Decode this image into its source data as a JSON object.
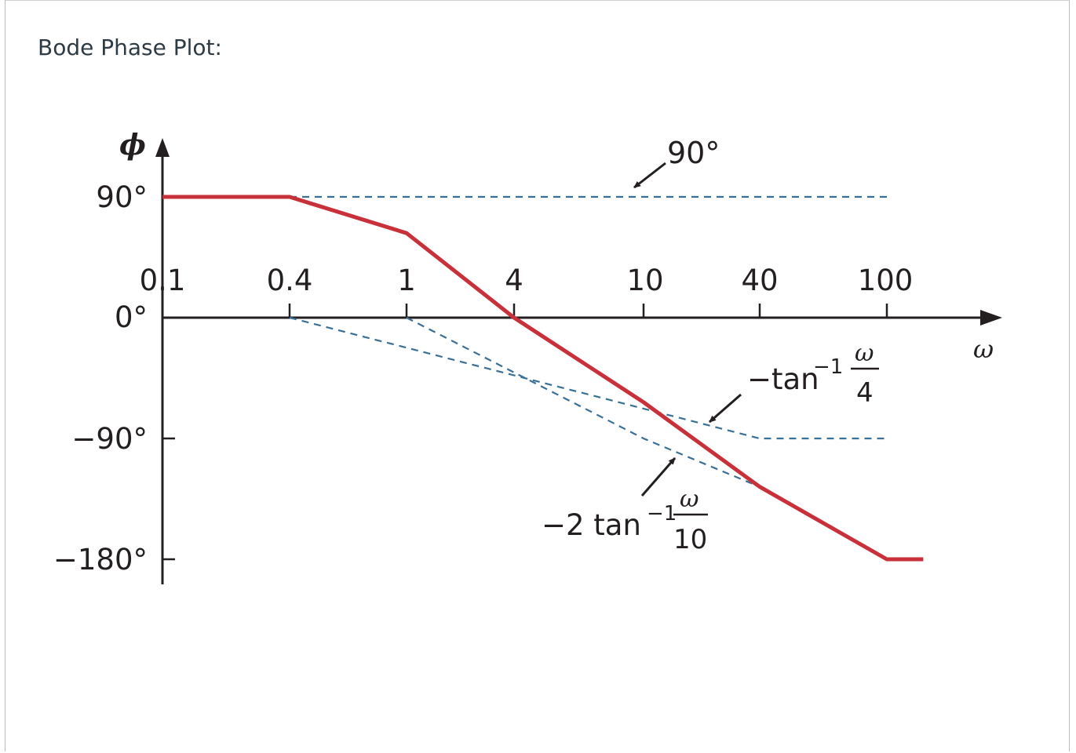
{
  "header": {
    "title": "Bode Phase Plot:"
  },
  "colors": {
    "plot_line": "#c8303a",
    "asymptote": "#3a6f97",
    "axis": "#231f20"
  },
  "chart_data": {
    "type": "line",
    "title": "",
    "xlabel": "ω",
    "ylabel": "ϕ",
    "x_scale": "log",
    "xlim": [
      0.1,
      100
    ],
    "ylim": [
      -180,
      90
    ],
    "x_ticks": [
      {
        "value": 0.1,
        "label": "0.1"
      },
      {
        "value": 0.4,
        "label": "0.4"
      },
      {
        "value": 1,
        "label": "1"
      },
      {
        "value": 4,
        "label": "4"
      },
      {
        "value": 10,
        "label": "10"
      },
      {
        "value": 40,
        "label": "40"
      },
      {
        "value": 100,
        "label": "100"
      }
    ],
    "y_ticks": [
      {
        "value": 90,
        "label": "90°"
      },
      {
        "value": 0,
        "label": "0°"
      },
      {
        "value": -90,
        "label": "−90°"
      },
      {
        "value": -180,
        "label": "−180°"
      }
    ],
    "series": [
      {
        "style": "solid",
        "x": [
          0.1,
          0.4,
          1,
          4,
          10,
          40,
          100,
          130
        ],
        "y": [
          90,
          90,
          63,
          0,
          -63,
          -126,
          -180,
          -180
        ]
      },
      {
        "style": "dashed",
        "x": [
          0.4,
          100
        ],
        "y": [
          90,
          90
        ]
      },
      {
        "style": "dashed",
        "x": [
          0.4,
          40,
          100
        ],
        "y": [
          0,
          -90,
          -90
        ]
      },
      {
        "style": "dashed",
        "x": [
          1,
          10,
          40
        ],
        "y": [
          0,
          -90,
          -126
        ]
      }
    ],
    "annotations": {
      "const": {
        "text": "90°"
      },
      "pole4": {
        "prefix": "−tan",
        "exp": "−1",
        "num": "ω",
        "den": "4"
      },
      "pole10": {
        "prefix": "−2 tan",
        "exp": "−1",
        "num": "ω",
        "den": "10"
      }
    }
  }
}
